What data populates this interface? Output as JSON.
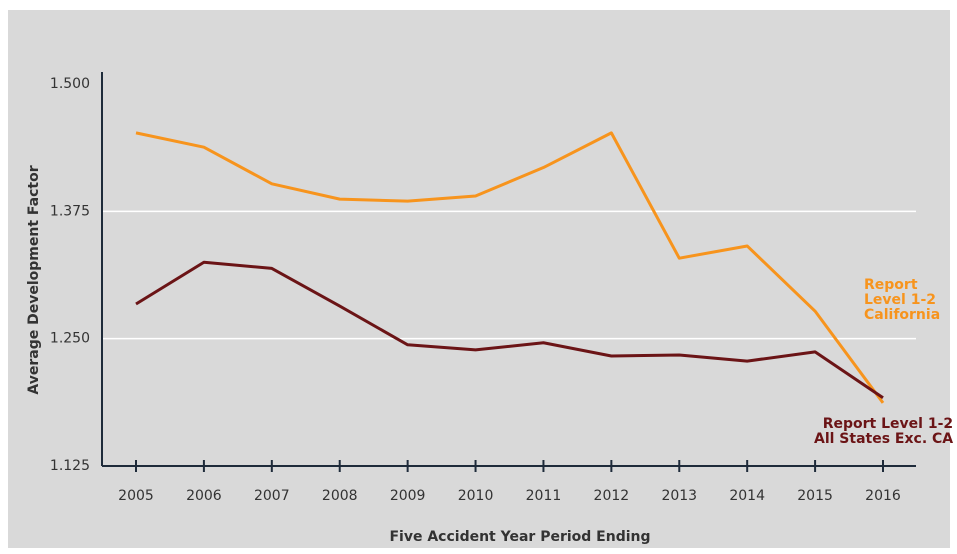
{
  "chart_data": {
    "type": "line",
    "x_label": "Five Accident Year Period Ending",
    "y_label": "Average Development Factor",
    "categories": [
      "2005",
      "2006",
      "2007",
      "2008",
      "2009",
      "2010",
      "2011",
      "2012",
      "2013",
      "2014",
      "2015",
      "2016"
    ],
    "series": [
      {
        "name": "Report\nLevel 1-2\nCalifornia",
        "color": "#f7941d",
        "values": [
          1.452,
          1.438,
          1.402,
          1.387,
          1.385,
          1.39,
          1.418,
          1.452,
          1.329,
          1.341,
          1.277,
          1.187
        ]
      },
      {
        "name": "Report Level 1-2\nAll States Exc. CA",
        "color": "#6b1416",
        "values": [
          1.284,
          1.325,
          1.319,
          1.282,
          1.244,
          1.239,
          1.246,
          1.233,
          1.234,
          1.228,
          1.237,
          1.192
        ]
      }
    ],
    "ylim": [
      1.125,
      1.5
    ],
    "yticks": [
      1.125,
      {
        "value": 1.25,
        "label": "1.250"
      },
      1.375,
      {
        "value": 1.5,
        "label": "1.500"
      }
    ],
    "grid": true
  }
}
